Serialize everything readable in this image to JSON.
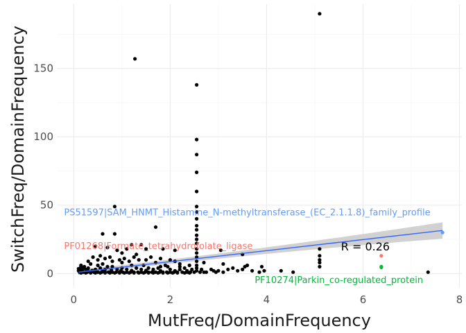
{
  "chart_data": {
    "type": "scatter",
    "xlabel": "MutFreq/DomainFrequency",
    "ylabel": "SwitchFreq/DomainFrequency",
    "xlim": [
      -0.35,
      8.05
    ],
    "ylim": [
      -10,
      197
    ],
    "xticks": [
      0,
      2,
      4,
      6,
      8
    ],
    "yticks": [
      0,
      50,
      100,
      150
    ],
    "grid": true,
    "point_color": "#000000",
    "fit": {
      "method": "linear",
      "x_range": [
        0.1,
        7.65
      ],
      "y_start": 1.0,
      "y_end": 31.5,
      "color": "#3366ff",
      "band_color": "#cccccc",
      "band_halfwidth_start": 2.0,
      "band_halfwidth_min": 1.5,
      "band_halfwidth_end": 6.0
    },
    "correlation_label": "R = 0.26",
    "correlation_pos": [
      6.05,
      20
    ],
    "annotations": [
      {
        "text": "PS51597|SAM_HNMT_Histamine_N-methyltransferase_(EC_2.1.1.8)_family_profile",
        "x": -0.2,
        "y": 45,
        "color": "#619cff",
        "anchor": "start"
      },
      {
        "text": "PF01268|Formate_tetrahydrofolate_ligase",
        "x": -0.2,
        "y": 20.5,
        "color": "#f8766d",
        "anchor": "start"
      },
      {
        "text": "PF10274|Parkin_co-regulated_protein",
        "x": 5.5,
        "y": -4.5,
        "color": "#00ba38",
        "anchor": "middle"
      }
    ],
    "highlight_points": [
      {
        "x": 7.65,
        "y": 30,
        "color": "#619cff"
      },
      {
        "x": 6.38,
        "y": 13,
        "color": "#f8766d"
      },
      {
        "x": 6.38,
        "y": 5,
        "color": "#00ba38"
      },
      {
        "x": 6.38,
        "y": 4.5,
        "color": "#00ba38"
      }
    ],
    "points": [
      [
        5.1,
        190
      ],
      [
        1.27,
        157
      ],
      [
        2.55,
        138
      ],
      [
        2.55,
        98
      ],
      [
        2.55,
        87
      ],
      [
        2.55,
        74
      ],
      [
        2.55,
        60
      ],
      [
        0.85,
        49
      ],
      [
        2.55,
        49
      ],
      [
        2.55,
        45
      ],
      [
        2.55,
        40
      ],
      [
        1.7,
        34
      ],
      [
        2.55,
        35
      ],
      [
        2.55,
        32
      ],
      [
        2.55,
        28
      ],
      [
        2.55,
        25
      ],
      [
        2.55,
        22
      ],
      [
        2.55,
        18
      ],
      [
        2.55,
        15
      ],
      [
        2.55,
        12
      ],
      [
        2.55,
        9
      ],
      [
        2.55,
        6
      ],
      [
        2.55,
        4
      ],
      [
        2.55,
        2
      ],
      [
        0.6,
        29
      ],
      [
        0.85,
        29
      ],
      [
        1.2,
        21
      ],
      [
        1.4,
        21
      ],
      [
        1.5,
        18
      ],
      [
        1.85,
        18
      ],
      [
        2.1,
        17
      ],
      [
        1.0,
        15
      ],
      [
        1.3,
        14
      ],
      [
        3.05,
        17
      ],
      [
        3.5,
        14
      ],
      [
        5.1,
        18
      ],
      [
        5.1,
        13
      ],
      [
        5.1,
        10
      ],
      [
        5.1,
        8
      ],
      [
        5.1,
        5
      ],
      [
        0.45,
        20
      ],
      [
        0.7,
        19
      ],
      [
        0.9,
        17
      ],
      [
        1.1,
        18
      ],
      [
        0.3,
        9
      ],
      [
        0.5,
        10
      ],
      [
        0.8,
        9
      ],
      [
        1.0,
        8
      ],
      [
        1.15,
        9
      ],
      [
        1.5,
        10
      ],
      [
        1.7,
        8
      ],
      [
        2.1,
        9
      ],
      [
        2.2,
        7
      ],
      [
        2.4,
        6
      ],
      [
        2.7,
        8
      ],
      [
        3.1,
        7
      ],
      [
        3.6,
        6
      ],
      [
        3.3,
        4
      ],
      [
        3.55,
        5
      ],
      [
        3.9,
        5
      ],
      [
        4.3,
        2
      ],
      [
        4.55,
        1
      ],
      [
        3.85,
        1
      ],
      [
        3.95,
        2
      ],
      [
        2.9,
        2
      ],
      [
        3.2,
        3
      ],
      [
        3.4,
        2
      ],
      [
        2.75,
        1
      ],
      [
        7.35,
        1
      ],
      [
        0.35,
        7
      ],
      [
        0.4,
        12
      ],
      [
        0.55,
        13
      ],
      [
        0.65,
        11
      ],
      [
        0.75,
        12
      ],
      [
        0.95,
        10
      ],
      [
        1.05,
        11
      ],
      [
        1.25,
        12
      ],
      [
        1.35,
        10
      ],
      [
        1.6,
        12
      ],
      [
        1.8,
        11
      ],
      [
        2.0,
        10
      ],
      [
        1.9,
        6
      ],
      [
        2.3,
        4
      ],
      [
        2.0,
        3
      ],
      [
        1.45,
        6
      ],
      [
        1.55,
        4
      ],
      [
        1.0,
        4
      ],
      [
        0.8,
        5
      ],
      [
        0.15,
        6
      ],
      [
        0.15,
        5
      ],
      [
        0.2,
        4
      ],
      [
        0.25,
        3
      ],
      [
        0.12,
        3
      ],
      [
        0.17,
        2
      ],
      [
        0.22,
        5
      ],
      [
        0.3,
        4
      ],
      [
        0.1,
        2
      ],
      [
        0.3,
        2
      ],
      [
        0.45,
        3
      ],
      [
        0.55,
        4
      ],
      [
        0.65,
        3
      ],
      [
        0.7,
        5
      ],
      [
        0.9,
        3
      ],
      [
        1.1,
        3
      ],
      [
        1.3,
        4
      ],
      [
        1.4,
        3
      ],
      [
        1.65,
        3
      ],
      [
        1.75,
        4
      ],
      [
        1.95,
        5
      ],
      [
        2.1,
        2
      ],
      [
        2.2,
        3
      ],
      [
        2.35,
        2
      ],
      [
        2.45,
        3
      ],
      [
        2.65,
        3
      ],
      [
        2.85,
        3
      ],
      [
        3.0,
        2
      ],
      [
        3.5,
        3
      ],
      [
        3.7,
        2
      ],
      [
        0.12,
        1
      ],
      [
        0.2,
        1
      ],
      [
        0.28,
        1
      ],
      [
        0.35,
        1
      ],
      [
        0.42,
        1
      ],
      [
        0.5,
        1
      ],
      [
        0.58,
        1
      ],
      [
        0.65,
        1
      ],
      [
        0.72,
        1
      ],
      [
        0.8,
        1
      ],
      [
        0.88,
        1
      ],
      [
        0.95,
        1
      ],
      [
        1.02,
        1
      ],
      [
        1.1,
        1
      ],
      [
        1.18,
        1
      ],
      [
        1.25,
        1
      ],
      [
        1.33,
        1
      ],
      [
        1.4,
        1
      ],
      [
        1.48,
        1
      ],
      [
        1.55,
        1
      ],
      [
        1.62,
        1
      ],
      [
        1.7,
        1
      ],
      [
        1.78,
        1
      ],
      [
        1.85,
        1
      ],
      [
        1.93,
        1
      ],
      [
        2.0,
        1
      ],
      [
        2.08,
        1
      ],
      [
        2.15,
        1
      ],
      [
        2.25,
        1
      ],
      [
        2.35,
        1
      ],
      [
        2.42,
        1
      ],
      [
        2.5,
        1
      ],
      [
        2.62,
        1
      ],
      [
        2.7,
        1
      ],
      [
        2.95,
        1
      ],
      [
        3.1,
        1
      ],
      [
        0.15,
        0.5
      ],
      [
        0.25,
        0.5
      ],
      [
        0.35,
        0.5
      ],
      [
        0.45,
        0.5
      ],
      [
        0.55,
        0.5
      ],
      [
        0.65,
        0.5
      ],
      [
        0.75,
        0.5
      ],
      [
        0.85,
        0.5
      ],
      [
        0.95,
        0.5
      ],
      [
        1.05,
        0.5
      ],
      [
        1.15,
        0.5
      ],
      [
        1.25,
        0.5
      ],
      [
        1.35,
        0.5
      ],
      [
        1.45,
        0.5
      ],
      [
        1.55,
        0.5
      ],
      [
        1.65,
        0.5
      ],
      [
        1.75,
        0.5
      ],
      [
        1.85,
        0.5
      ],
      [
        1.95,
        0.5
      ],
      [
        2.05,
        0.5
      ],
      [
        2.15,
        0.5
      ],
      [
        2.3,
        0.5
      ],
      [
        2.4,
        0.5
      ],
      [
        0.18,
        1.8
      ],
      [
        0.28,
        2.5
      ],
      [
        0.38,
        2.2
      ],
      [
        0.48,
        1.8
      ],
      [
        0.6,
        2.2
      ],
      [
        0.78,
        2.5
      ],
      [
        0.98,
        2.0
      ],
      [
        1.2,
        2.2
      ],
      [
        1.5,
        2.3
      ],
      [
        1.8,
        2.0
      ],
      [
        0.1,
        3.5
      ],
      [
        0.14,
        4
      ],
      [
        0.5,
        6
      ],
      [
        0.6,
        7
      ],
      [
        1.2,
        6
      ],
      [
        1.8,
        5
      ],
      [
        2.2,
        5
      ]
    ]
  }
}
